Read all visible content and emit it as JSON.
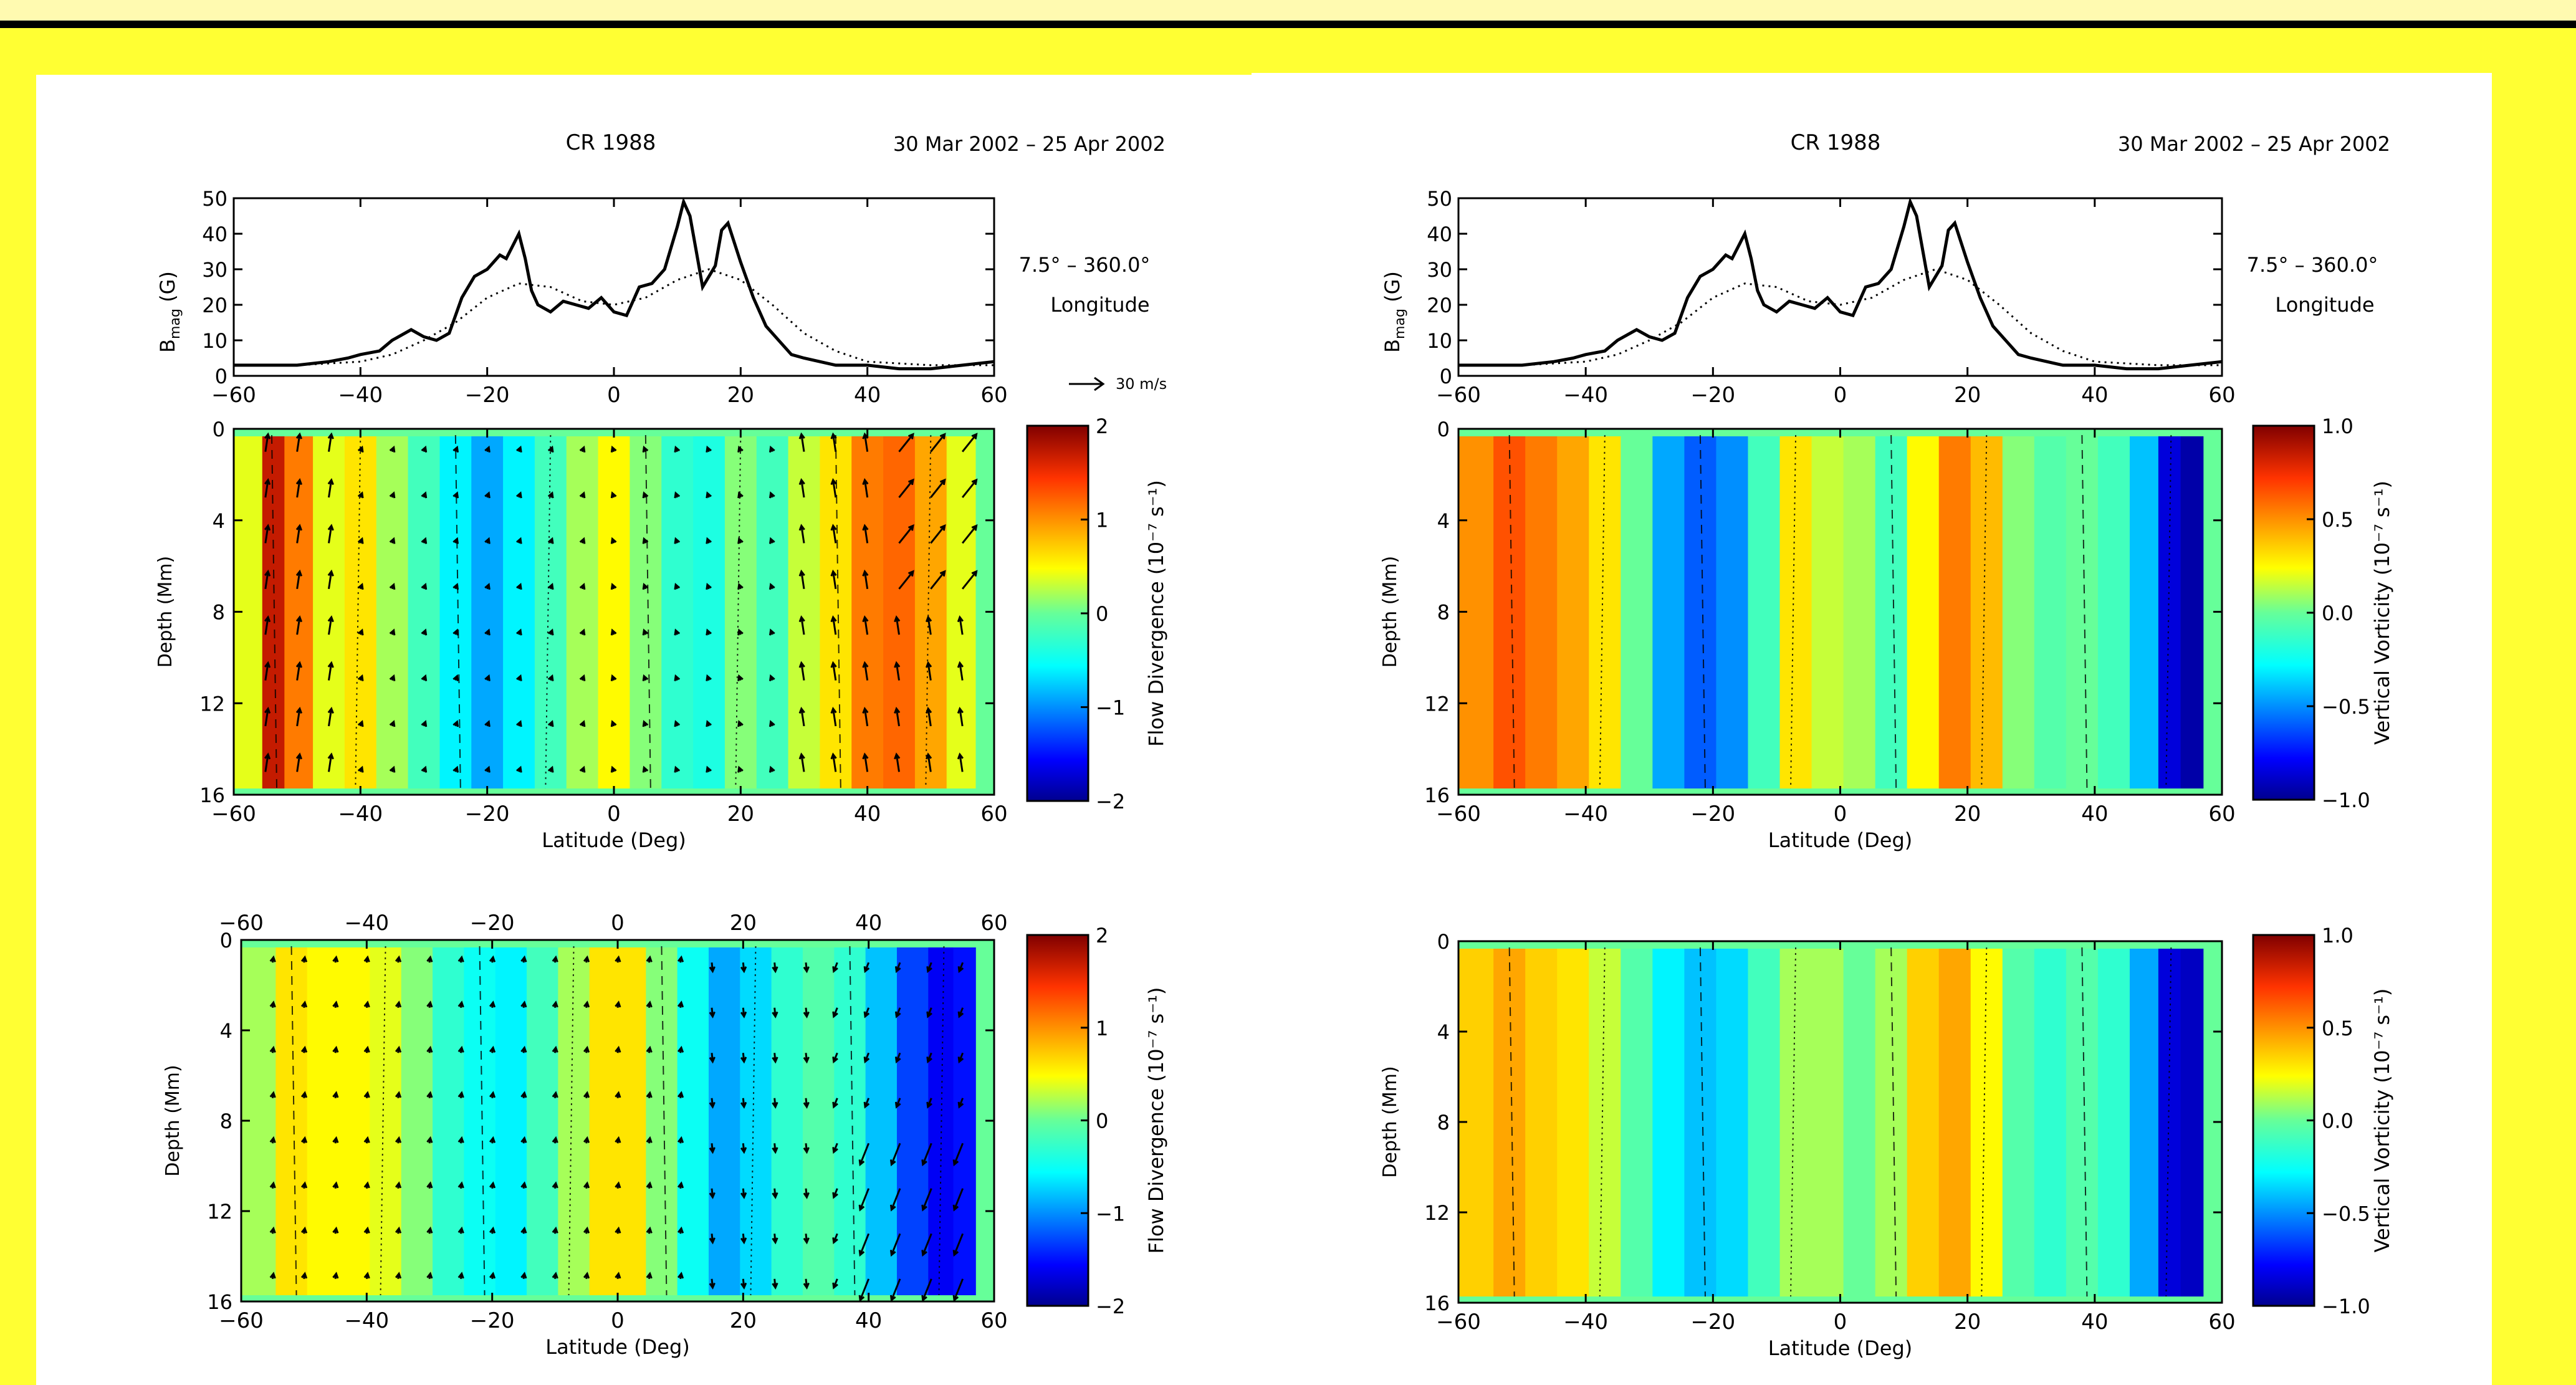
{
  "page": {
    "colors": {
      "background": "#ffff33",
      "band": "#fffab0",
      "panel": "#ffffff",
      "line": "#000000"
    }
  },
  "figures": [
    {
      "title": "CR 1988",
      "date_range": "30 Mar 2002 – 25 Apr 2002",
      "lon_range": "7.5° – 360.0°",
      "lon_label": "Longitude",
      "vector_scale": "30 m/s",
      "colorbar_label": "Flow Divergence (10⁻⁷ s⁻¹)",
      "colorbar_ticks": [
        "−2",
        "−1",
        "0",
        "1",
        "2"
      ]
    },
    {
      "title": "CR 1988",
      "date_range": "30 Mar 2002 – 25 Apr 2002",
      "lon_range": "7.5° – 360.0°",
      "lon_label": "Longitude",
      "vector_scale": "",
      "colorbar_label": "Vertical Vorticity (10⁻⁷ s⁻¹)",
      "colorbar_ticks": [
        "−1.0",
        "−0.5",
        "0.0",
        "0.5",
        "1.0"
      ]
    }
  ],
  "chart_data": [
    {
      "type": "line",
      "panel": "top-left",
      "ylabel": "B_mag (G)",
      "xlim": [
        -60,
        60
      ],
      "ylim": [
        0,
        50
      ],
      "xticks": [
        "−60",
        "−40",
        "−20",
        "0",
        "20",
        "40",
        "60"
      ],
      "yticks": [
        "0",
        "10",
        "20",
        "30",
        "40",
        "50"
      ],
      "series": [
        {
          "style": "solid",
          "x": [
            -60,
            -55,
            -50,
            -45,
            -42,
            -40,
            -37,
            -35,
            -32,
            -30,
            -28,
            -26,
            -24,
            -22,
            -20,
            -18,
            -17,
            -15,
            -14,
            -13,
            -12,
            -10,
            -8,
            -6,
            -4,
            -2,
            0,
            2,
            4,
            6,
            8,
            10,
            11,
            12,
            13,
            14,
            16,
            17,
            18,
            20,
            22,
            24,
            26,
            28,
            30,
            35,
            40,
            45,
            50,
            55,
            60
          ],
          "y": [
            3,
            3,
            3,
            4,
            5,
            6,
            7,
            10,
            13,
            11,
            10,
            12,
            22,
            28,
            30,
            34,
            33,
            40,
            33,
            24,
            20,
            18,
            21,
            20,
            19,
            22,
            18,
            17,
            25,
            26,
            30,
            42,
            49,
            45,
            35,
            25,
            31,
            41,
            43,
            32,
            22,
            14,
            10,
            6,
            5,
            3,
            3,
            2,
            2,
            3,
            4
          ]
        },
        {
          "style": "dotted",
          "x": [
            -60,
            -50,
            -40,
            -35,
            -30,
            -25,
            -20,
            -15,
            -10,
            -5,
            0,
            5,
            10,
            15,
            20,
            25,
            30,
            35,
            40,
            50,
            60
          ],
          "y": [
            3,
            3,
            4,
            6,
            10,
            15,
            22,
            26,
            25,
            21,
            20,
            22,
            27,
            30,
            27,
            20,
            12,
            7,
            4,
            3,
            3
          ]
        }
      ]
    },
    {
      "type": "heatmap",
      "panel": "top-left-contour",
      "xlabel": "Latitude (Deg)",
      "ylabel": "Depth (Mm)",
      "xlim": [
        -60,
        60
      ],
      "ylim": [
        16,
        0
      ],
      "xticks": [
        "−60",
        "−40",
        "−20",
        "0",
        "20",
        "40",
        "60"
      ],
      "yticks": [
        "0",
        "4",
        "8",
        "12",
        "16"
      ],
      "colorbar": {
        "min": -2,
        "max": 2
      },
      "columns": [
        {
          "lat": -57,
          "value": 0.4
        },
        {
          "lat": -54,
          "value": 1.7
        },
        {
          "lat": -50,
          "value": 1.1
        },
        {
          "lat": -45,
          "value": 0.4
        },
        {
          "lat": -40,
          "value": 0.6
        },
        {
          "lat": -35,
          "value": 0.2
        },
        {
          "lat": -30,
          "value": -0.2
        },
        {
          "lat": -25,
          "value": -0.6
        },
        {
          "lat": -20,
          "value": -0.9
        },
        {
          "lat": -15,
          "value": -0.6
        },
        {
          "lat": -10,
          "value": -0.2
        },
        {
          "lat": -5,
          "value": 0.2
        },
        {
          "lat": 0,
          "value": 0.5
        },
        {
          "lat": 5,
          "value": 0.1
        },
        {
          "lat": 10,
          "value": -0.3
        },
        {
          "lat": 15,
          "value": -0.4
        },
        {
          "lat": 20,
          "value": 0.1
        },
        {
          "lat": 25,
          "value": -0.2
        },
        {
          "lat": 30,
          "value": 0.3
        },
        {
          "lat": 35,
          "value": 0.6
        },
        {
          "lat": 40,
          "value": 1.1
        },
        {
          "lat": 45,
          "value": 1.2
        },
        {
          "lat": 50,
          "value": 0.9
        },
        {
          "lat": 55,
          "value": 0.4
        }
      ]
    },
    {
      "type": "heatmap",
      "panel": "bottom-left",
      "xlabel": "Latitude (Deg)",
      "ylabel": "Depth (Mm)",
      "xlim": [
        -60,
        60
      ],
      "ylim": [
        16,
        0
      ],
      "xticks": [
        "−60",
        "−40",
        "−20",
        "0",
        "20",
        "40",
        "60"
      ],
      "yticks": [
        "0",
        "4",
        "8",
        "12",
        "16"
      ],
      "colorbar": {
        "min": -2,
        "max": 2
      },
      "columns": [
        {
          "lat": -57,
          "value": 0.2
        },
        {
          "lat": -52,
          "value": 0.6
        },
        {
          "lat": -47,
          "value": 0.5
        },
        {
          "lat": -42,
          "value": 0.5
        },
        {
          "lat": -37,
          "value": 0.4
        },
        {
          "lat": -32,
          "value": 0.1
        },
        {
          "lat": -27,
          "value": -0.3
        },
        {
          "lat": -22,
          "value": -0.5
        },
        {
          "lat": -17,
          "value": -0.6
        },
        {
          "lat": -12,
          "value": -0.2
        },
        {
          "lat": -7,
          "value": 0.2
        },
        {
          "lat": -2,
          "value": 0.6
        },
        {
          "lat": 2,
          "value": 0.6
        },
        {
          "lat": 7,
          "value": 0.1
        },
        {
          "lat": 12,
          "value": -0.5
        },
        {
          "lat": 17,
          "value": -0.9
        },
        {
          "lat": 22,
          "value": -0.7
        },
        {
          "lat": 27,
          "value": -0.3
        },
        {
          "lat": 32,
          "value": -0.1
        },
        {
          "lat": 37,
          "value": -0.3
        },
        {
          "lat": 42,
          "value": -0.8
        },
        {
          "lat": 47,
          "value": -1.3
        },
        {
          "lat": 52,
          "value": -1.6
        },
        {
          "lat": 55,
          "value": -1.5
        }
      ]
    },
    {
      "type": "line",
      "panel": "top-right",
      "ylabel": "B_mag (G)",
      "xlim": [
        -60,
        60
      ],
      "ylim": [
        0,
        50
      ],
      "xticks": [
        "−60",
        "−40",
        "−20",
        "0",
        "20",
        "40",
        "60"
      ],
      "yticks": [
        "0",
        "10",
        "20",
        "30",
        "40",
        "50"
      ],
      "series": [
        {
          "style": "solid",
          "x": [
            -60,
            -55,
            -50,
            -45,
            -42,
            -40,
            -37,
            -35,
            -32,
            -30,
            -28,
            -26,
            -24,
            -22,
            -20,
            -18,
            -17,
            -15,
            -14,
            -13,
            -12,
            -10,
            -8,
            -6,
            -4,
            -2,
            0,
            2,
            4,
            6,
            8,
            10,
            11,
            12,
            13,
            14,
            16,
            17,
            18,
            20,
            22,
            24,
            26,
            28,
            30,
            35,
            40,
            45,
            50,
            55,
            60
          ],
          "y": [
            3,
            3,
            3,
            4,
            5,
            6,
            7,
            10,
            13,
            11,
            10,
            12,
            22,
            28,
            30,
            34,
            33,
            40,
            33,
            24,
            20,
            18,
            21,
            20,
            19,
            22,
            18,
            17,
            25,
            26,
            30,
            42,
            49,
            45,
            35,
            25,
            31,
            41,
            43,
            32,
            22,
            14,
            10,
            6,
            5,
            3,
            3,
            2,
            2,
            3,
            4
          ]
        },
        {
          "style": "dotted",
          "x": [
            -60,
            -50,
            -40,
            -35,
            -30,
            -25,
            -20,
            -15,
            -10,
            -5,
            0,
            5,
            10,
            15,
            20,
            25,
            30,
            35,
            40,
            50,
            60
          ],
          "y": [
            3,
            3,
            4,
            6,
            10,
            15,
            22,
            26,
            25,
            21,
            20,
            22,
            27,
            30,
            27,
            20,
            12,
            7,
            4,
            3,
            3
          ]
        }
      ]
    },
    {
      "type": "heatmap",
      "panel": "top-right-contour",
      "xlabel": "Latitude (Deg)",
      "ylabel": "Depth (Mm)",
      "xlim": [
        -60,
        60
      ],
      "ylim": [
        16,
        0
      ],
      "xticks": [
        "−60",
        "−40",
        "−20",
        "0",
        "20",
        "40",
        "60"
      ],
      "yticks": [
        "0",
        "4",
        "8",
        "12",
        "16"
      ],
      "colorbar": {
        "min": -1.0,
        "max": 1.0
      },
      "columns": [
        {
          "lat": -57,
          "value": 0.5
        },
        {
          "lat": -52,
          "value": 0.65
        },
        {
          "lat": -47,
          "value": 0.55
        },
        {
          "lat": -42,
          "value": 0.45
        },
        {
          "lat": -37,
          "value": 0.3
        },
        {
          "lat": -32,
          "value": 0.0
        },
        {
          "lat": -27,
          "value": -0.45
        },
        {
          "lat": -22,
          "value": -0.6
        },
        {
          "lat": -17,
          "value": -0.5
        },
        {
          "lat": -12,
          "value": -0.1
        },
        {
          "lat": -7,
          "value": 0.3
        },
        {
          "lat": -2,
          "value": 0.15
        },
        {
          "lat": 3,
          "value": 0.1
        },
        {
          "lat": 8,
          "value": -0.1
        },
        {
          "lat": 13,
          "value": 0.25
        },
        {
          "lat": 18,
          "value": 0.55
        },
        {
          "lat": 23,
          "value": 0.4
        },
        {
          "lat": 28,
          "value": 0.05
        },
        {
          "lat": 33,
          "value": -0.05
        },
        {
          "lat": 38,
          "value": 0.0
        },
        {
          "lat": 43,
          "value": -0.1
        },
        {
          "lat": 48,
          "value": -0.4
        },
        {
          "lat": 52,
          "value": -0.85
        },
        {
          "lat": 55,
          "value": -0.95
        }
      ]
    },
    {
      "type": "heatmap",
      "panel": "bottom-right",
      "xlabel": "Latitude (Deg)",
      "ylabel": "Depth (Mm)",
      "xlim": [
        -60,
        60
      ],
      "ylim": [
        16,
        0
      ],
      "xticks": [
        "−60",
        "−40",
        "−20",
        "0",
        "20",
        "40",
        "60"
      ],
      "yticks": [
        "0",
        "4",
        "8",
        "12",
        "16"
      ],
      "colorbar": {
        "min": -1.0,
        "max": 1.0
      },
      "columns": [
        {
          "lat": -57,
          "value": 0.35
        },
        {
          "lat": -52,
          "value": 0.45
        },
        {
          "lat": -47,
          "value": 0.35
        },
        {
          "lat": -42,
          "value": 0.3
        },
        {
          "lat": -37,
          "value": 0.15
        },
        {
          "lat": -32,
          "value": -0.05
        },
        {
          "lat": -27,
          "value": -0.3
        },
        {
          "lat": -22,
          "value": -0.4
        },
        {
          "lat": -17,
          "value": -0.35
        },
        {
          "lat": -12,
          "value": -0.1
        },
        {
          "lat": -7,
          "value": 0.1
        },
        {
          "lat": -2,
          "value": 0.1
        },
        {
          "lat": 3,
          "value": 0.0
        },
        {
          "lat": 8,
          "value": 0.1
        },
        {
          "lat": 13,
          "value": 0.35
        },
        {
          "lat": 18,
          "value": 0.45
        },
        {
          "lat": 23,
          "value": 0.25
        },
        {
          "lat": 28,
          "value": -0.05
        },
        {
          "lat": 33,
          "value": -0.15
        },
        {
          "lat": 38,
          "value": -0.05
        },
        {
          "lat": 43,
          "value": -0.15
        },
        {
          "lat": 48,
          "value": -0.45
        },
        {
          "lat": 52,
          "value": -0.85
        },
        {
          "lat": 55,
          "value": -0.9
        }
      ]
    }
  ]
}
